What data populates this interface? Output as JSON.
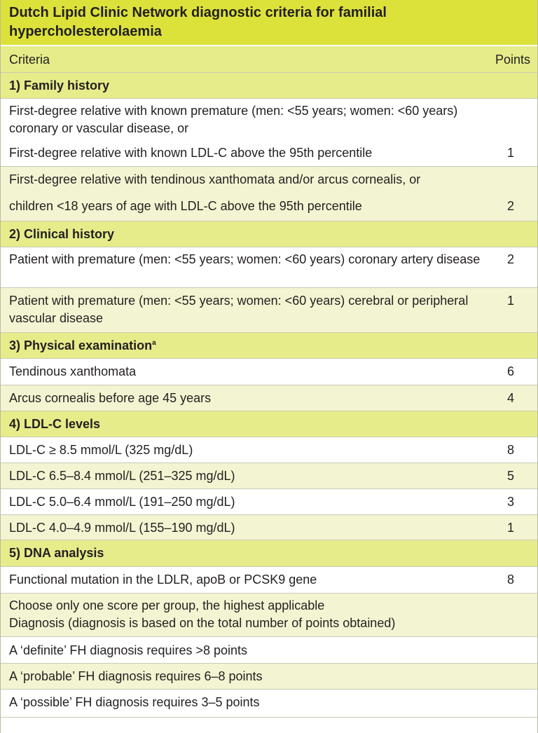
{
  "title": "Dutch Lipid Clinic Network diagnostic criteria for familial hypercholesterolaemia",
  "header": {
    "criteria": "Criteria",
    "points": "Points"
  },
  "sections": {
    "family": {
      "label": "1) Family history",
      "r1": {
        "text": "First-degree relative with known premature (men: <55 years; women: <60 years) coronary or vascular disease, or"
      },
      "r2": {
        "text": "First-degree relative with known LDL-C above the 95th percentile",
        "points": "1"
      },
      "r3a": {
        "text": "First-degree relative with tendinous xanthomata and/or arcus cornealis, or"
      },
      "r3b": {
        "text": "children <18 years of age with LDL-C above the 95th percentile",
        "points": "2"
      }
    },
    "clinical": {
      "label": "2) Clinical history",
      "r1": {
        "text": "Patient with premature (men: <55 years; women: <60 years) coronary artery disease",
        "points": "2"
      },
      "r2": {
        "text": "Patient with premature (men: <55 years; women: <60 years) cerebral or peripheral vascular disease",
        "points": "1"
      }
    },
    "physical": {
      "label": "3) Physical examination",
      "sup": "a",
      "r1": {
        "text": "Tendinous xanthomata",
        "points": "6"
      },
      "r2": {
        "text": "Arcus cornealis before age 45 years",
        "points": "4"
      }
    },
    "ldl": {
      "label": "4) LDL-C levels",
      "r1": {
        "text": "LDL-C ≥ 8.5 mmol/L (325 mg/dL)",
        "points": "8"
      },
      "r2": {
        "text": "LDL-C 6.5–8.4 mmol/L (251–325 mg/dL)",
        "points": "5"
      },
      "r3": {
        "text": "LDL-C 5.0–6.4 mmol/L (191–250 mg/dL)",
        "points": "3"
      },
      "r4": {
        "text": "LDL-C 4.0–4.9 mmol/L (155–190 mg/dL)",
        "points": "1"
      }
    },
    "dna": {
      "label": "5) DNA analysis",
      "r1": {
        "text": "Functional mutation in the LDLR, apoB or PCSK9 gene",
        "points": "8"
      }
    }
  },
  "notes": {
    "line1": "Choose only one score per group, the highest applicable",
    "line2": "Diagnosis (diagnosis is based on the total number of points obtained)",
    "definite": "A ‘definite’ FH diagnosis requires >8 points",
    "probable": "A ‘probable’ FH diagnosis requires 6–8 points",
    "possible": "A ‘possible’ FH diagnosis requires 3–5 points"
  }
}
